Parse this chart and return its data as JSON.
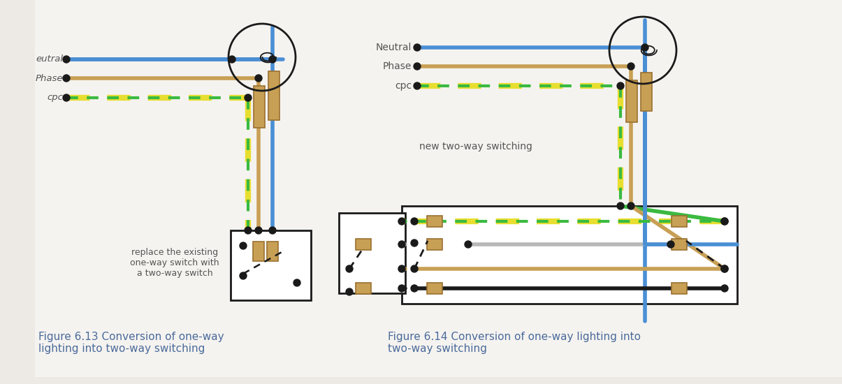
{
  "bg_color": "#ede9e4",
  "wire_blue": "#4a8fd4",
  "wire_brown": "#c8a055",
  "wire_yellow": "#e8de30",
  "wire_green": "#3aba40",
  "wire_black": "#1a1a1a",
  "wire_gray": "#b8b8b8",
  "terminal_color": "#c8a055",
  "terminal_edge": "#9a7030",
  "dot_color": "#1a1a1a",
  "text_color": "#555555",
  "caption_color": "#4a6a9a",
  "fig1_caption_line1": "Figure 6.13 Conversion of one-way",
  "fig1_caption_line2": "lighting into two-way switching",
  "fig2_caption_line1": "Figure 6.14 Conversion of one-way lighting into",
  "fig2_caption_line2": "two-way switching",
  "label_neutral1": "eutral",
  "label_phase1": "hase",
  "label_cpc1": "cpc",
  "label_neutral2": "Neutral",
  "label_phase2": "Phase",
  "label_cpc2": "cpc",
  "label_new_switching": "new two-way switching",
  "label_replace_line1": "replace the existing",
  "label_replace_line2": "one-way switch with",
  "label_replace_line3": "a two-way switch"
}
